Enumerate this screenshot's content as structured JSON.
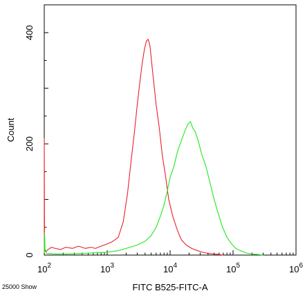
{
  "chart_data": {
    "type": "line",
    "title": "",
    "xlabel": "FITC B525-FITC-A",
    "ylabel": "Count",
    "x_scale": "log",
    "xlim": [
      100,
      1000000
    ],
    "ylim": [
      0,
      450
    ],
    "x_ticks": [
      {
        "value": 100,
        "base": "10",
        "exp": "2"
      },
      {
        "value": 1000,
        "base": "10",
        "exp": "3"
      },
      {
        "value": 10000,
        "base": "10",
        "exp": "4"
      },
      {
        "value": 100000,
        "base": "10",
        "exp": "5"
      },
      {
        "value": 1000000,
        "base": "10",
        "exp": "6"
      }
    ],
    "y_ticks": [
      {
        "value": 0,
        "label": "0"
      },
      {
        "value": 200,
        "label": "200"
      },
      {
        "value": 400,
        "label": "400"
      }
    ],
    "footnote": "25000 Show",
    "grid": false,
    "legend": "none",
    "series": [
      {
        "color": "#e8202a",
        "x": [
          100,
          100,
          101,
          102,
          105,
          115,
          130,
          150,
          180,
          220,
          280,
          350,
          450,
          550,
          650,
          800,
          1000,
          1200,
          1500,
          1800,
          2100,
          2400,
          2700,
          3000,
          3300,
          3600,
          3900,
          4200,
          4500,
          4800,
          5100,
          5500,
          6000,
          6700,
          7500,
          8500,
          9500,
          11000,
          13000,
          15000,
          18000,
          22000,
          27000,
          33000,
          40000,
          50000,
          60000,
          70000
        ],
        "y": [
          4,
          210,
          40,
          8,
          6,
          10,
          14,
          12,
          10,
          14,
          12,
          16,
          12,
          14,
          12,
          16,
          20,
          24,
          32,
          60,
          110,
          170,
          220,
          270,
          310,
          345,
          370,
          385,
          388,
          375,
          345,
          310,
          270,
          230,
          180,
          140,
          100,
          70,
          45,
          28,
          18,
          12,
          8,
          5,
          3,
          2,
          1,
          0
        ]
      },
      {
        "color": "#1ee81e",
        "x": [
          100,
          101,
          103,
          110,
          150,
          250,
          400,
          600,
          1000,
          1500,
          2000,
          3000,
          4000,
          5000,
          6000,
          7000,
          8000,
          9000,
          10000,
          11500,
          13000,
          15000,
          17000,
          19000,
          21000,
          23000,
          25000,
          28000,
          32000,
          37000,
          43000,
          50000,
          58000,
          68000,
          80000,
          95000,
          110000,
          130000,
          160000,
          200000,
          250000,
          300000
        ],
        "y": [
          4,
          40,
          10,
          3,
          2,
          2,
          3,
          4,
          5,
          8,
          12,
          18,
          25,
          35,
          50,
          70,
          90,
          115,
          140,
          160,
          185,
          205,
          222,
          235,
          240,
          228,
          222,
          205,
          180,
          160,
          130,
          100,
          75,
          50,
          32,
          20,
          12,
          8,
          4,
          2,
          1,
          0
        ]
      }
    ]
  }
}
